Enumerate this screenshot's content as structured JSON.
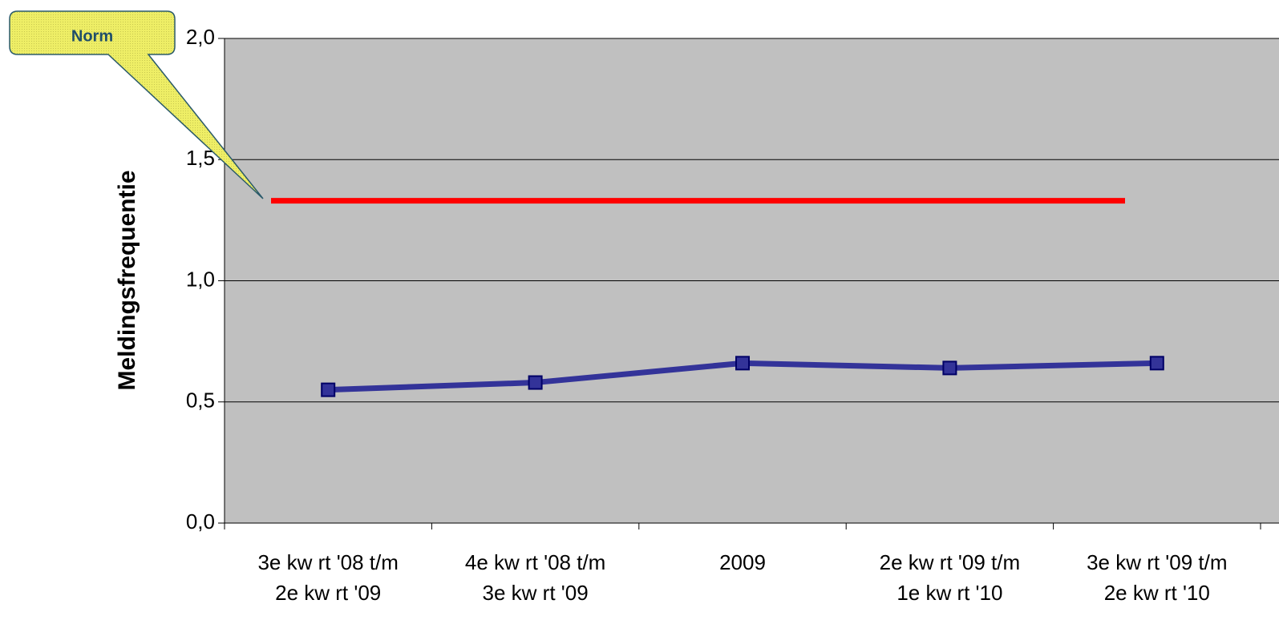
{
  "chart_data": {
    "type": "line",
    "y_label": "Meldingsfrequentie",
    "categories": [
      "3e kw rt '08 t/m\n2e kw rt '09",
      "4e kw rt '08 t/m\n3e kw rt '09",
      "2009",
      "2e kw rt '09 t/m\n1e kw rt '10",
      "3e kw rt '09 t/m\n2e kw rt '10"
    ],
    "series": [
      {
        "name": "Meldingsfrequentie",
        "color": "#333399",
        "values": [
          0.55,
          0.58,
          0.66,
          0.64,
          0.66
        ]
      }
    ],
    "norm": {
      "label": "Norm",
      "value": 1.33,
      "color": "#ff0000"
    },
    "ylim": [
      0,
      2
    ],
    "yticks": [
      {
        "value": 0,
        "label": "0,0"
      },
      {
        "value": 0.5,
        "label": "0,5"
      },
      {
        "value": 1,
        "label": "1,0"
      },
      {
        "value": 1.5,
        "label": "1,5"
      },
      {
        "value": 2,
        "label": "2,0"
      }
    ],
    "grid": true
  }
}
